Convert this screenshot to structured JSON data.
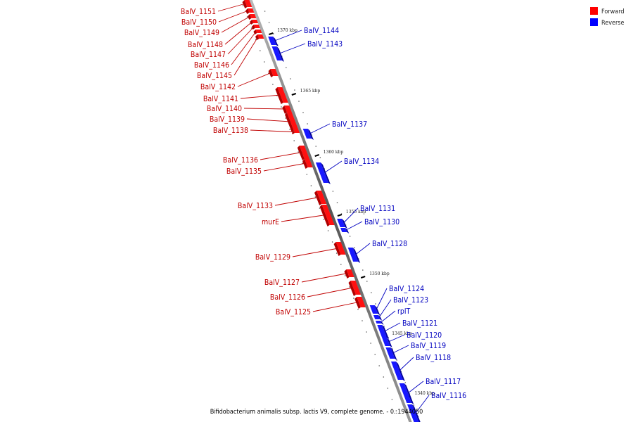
{
  "legend": {
    "forward": {
      "label": "Forward",
      "color": "#ff0000"
    },
    "reverse": {
      "label": "Reverse",
      "color": "#0000ff"
    }
  },
  "caption": "Bifidobacterium animalis subsp. lactis V9, complete genome. - 0..1944050",
  "ticks": [
    "1370 kbp",
    "1365 kbp",
    "1360 kbp",
    "1355 kbp",
    "1350 kbp",
    "1345 kbp",
    "1340 kbp"
  ],
  "forward_genes": [
    "BalV_1151",
    "BalV_1150",
    "BalV_1149",
    "BalV_1148",
    "BalV_1147",
    "BalV_1146",
    "BalV_1145",
    "BalV_1142",
    "BalV_1141",
    "BalV_1140",
    "BalV_1139",
    "BalV_1138",
    "BalV_1136",
    "BalV_1135",
    "BalV_1133",
    "murE",
    "BalV_1129",
    "BalV_1127",
    "BalV_1126",
    "BalV_1125"
  ],
  "reverse_genes": [
    "BalV_1144",
    "BalV_1143",
    "BalV_1137",
    "BalV_1134",
    "BalV_1131",
    "BalV_1130",
    "BalV_1128",
    "BalV_1124",
    "BalV_1123",
    "rplT",
    "BalV_1121",
    "BalV_1120",
    "BalV_1119",
    "BalV_1118",
    "BalV_1117",
    "BalV_1116"
  ]
}
